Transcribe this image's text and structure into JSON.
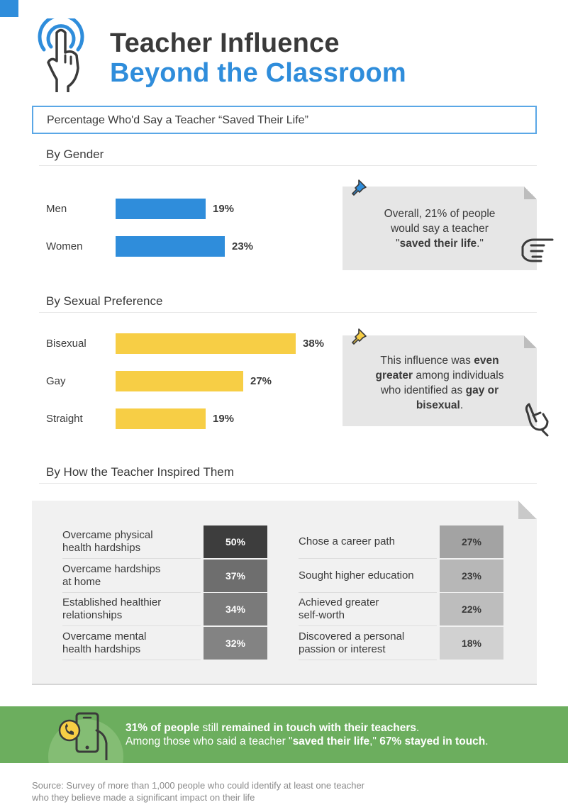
{
  "header": {
    "title_line1": "Teacher Influence",
    "title_line2": "Beyond the Classroom",
    "subtitle": "Percentage Who'd Say a Teacher “Saved Their Life”"
  },
  "colors": {
    "blue": "#2f8ddb",
    "yellow": "#f7ce45",
    "green": "#6cae5e",
    "dark_text": "#3a3a3a"
  },
  "chart_data": [
    {
      "type": "bar",
      "orientation": "horizontal",
      "title": "By Gender",
      "categories": [
        "Men",
        "Women"
      ],
      "values": [
        19,
        23
      ],
      "value_labels": [
        "19%",
        "23%"
      ],
      "unit": "%",
      "color": "#2f8ddb",
      "xlim": [
        0,
        38
      ]
    },
    {
      "type": "bar",
      "orientation": "horizontal",
      "title": "By Sexual Preference",
      "categories": [
        "Bisexual",
        "Gay",
        "Straight"
      ],
      "values": [
        38,
        27,
        19
      ],
      "value_labels": [
        "38%",
        "27%",
        "19%"
      ],
      "unit": "%",
      "color": "#f7ce45",
      "xlim": [
        0,
        38
      ]
    },
    {
      "type": "table",
      "title": "By How the Teacher Inspired Them",
      "rows": [
        {
          "label": "Overcame physical health hardships",
          "value": "50%",
          "shade": "#3d3d3d"
        },
        {
          "label": "Overcame hardships at home",
          "value": "37%",
          "shade": "#6e6e6e"
        },
        {
          "label": "Established healthier relationships",
          "value": "34%",
          "shade": "#7a7a7a"
        },
        {
          "label": "Overcame mental health hardships",
          "value": "32%",
          "shade": "#838383"
        },
        {
          "label": "Chose a career path",
          "value": "27%",
          "shade": "#a3a3a3"
        },
        {
          "label": "Sought higher education",
          "value": "23%",
          "shade": "#b7b7b7"
        },
        {
          "label": "Achieved greater self-worth",
          "value": "22%",
          "shade": "#bdbdbd"
        },
        {
          "label": "Discovered a personal passion or interest",
          "value": "18%",
          "shade": "#d1d1d1"
        }
      ]
    }
  ],
  "table_display": {
    "left": [
      {
        "line1": "Overcame physical",
        "line2": "health hardships",
        "value": "50%",
        "shade": "#3d3d3d",
        "text": "#ffffff"
      },
      {
        "line1": "Overcame hardships",
        "line2": "at home",
        "value": "37%",
        "shade": "#6e6e6e",
        "text": "#ffffff"
      },
      {
        "line1": "Established healthier",
        "line2": "relationships",
        "value": "34%",
        "shade": "#7a7a7a",
        "text": "#ffffff"
      },
      {
        "line1": "Overcame mental",
        "line2": "health hardships",
        "value": "32%",
        "shade": "#838383",
        "text": "#ffffff"
      }
    ],
    "right": [
      {
        "line1": "Chose a career path",
        "line2": "",
        "value": "27%",
        "shade": "#a3a3a3",
        "text": "#3a3a3a"
      },
      {
        "line1": "Sought higher education",
        "line2": "",
        "value": "23%",
        "shade": "#b7b7b7",
        "text": "#3a3a3a"
      },
      {
        "line1": "Achieved greater",
        "line2": "self-worth",
        "value": "22%",
        "shade": "#bdbdbd",
        "text": "#3a3a3a"
      },
      {
        "line1": "Discovered a personal",
        "line2": "passion or interest",
        "value": "18%",
        "shade": "#d1d1d1",
        "text": "#3a3a3a"
      }
    ]
  },
  "callouts": {
    "gender": {
      "line1": "Overall, 21% of people",
      "line2": "would say a teacher",
      "line3_pre": "\"",
      "line3_bold": "saved their life",
      "line3_post": ".\""
    },
    "preference": {
      "l1_pre": "This influence was ",
      "l1_bold": "even",
      "l2_bold": "greater",
      "l2_post": " among individuals",
      "l3": "who identified as ",
      "l3_bold": "gay or",
      "l4_bold": "bisexual",
      "l4_post": "."
    }
  },
  "banner": {
    "line1_bold1": "31% of people",
    "line1_mid": " still ",
    "line1_bold2": "remained in touch with their teachers",
    "line1_end": ".",
    "line2_pre": "Among those who said a teacher \"",
    "line2_bold1": "saved their life",
    "line2_mid": ",\" ",
    "line2_bold2": "67% stayed in touch",
    "line2_end": "."
  },
  "source": {
    "line1": "Source: Survey of more than 1,000 people who could identify at least one teacher",
    "line2": "who they believe made a significant impact on their life"
  },
  "icons": {
    "logo": "touch-hand-icon",
    "pin": "pushpin-icon",
    "pointing": "pointing-hand-icon",
    "phone": "phone-call-icon"
  }
}
